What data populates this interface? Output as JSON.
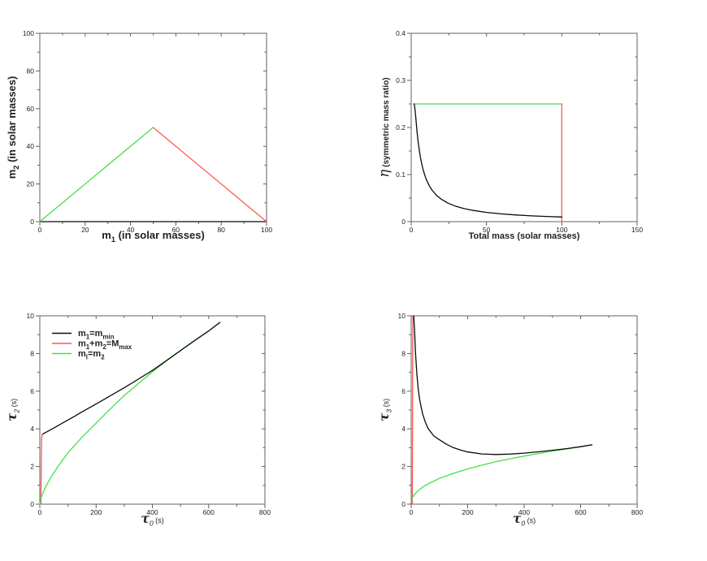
{
  "figure": {
    "background": "#ffffff"
  },
  "colors": {
    "black_series": "#0a0a0a",
    "red_series": "#fb5a50",
    "green_series": "#46e046",
    "frame": "#606060",
    "tick_text": "#333333",
    "label_text": "#111111"
  },
  "chart_data": [
    {
      "type": "line",
      "position": "top-left",
      "xlabel": "m_1 (in solar masses)",
      "ylabel": "m_2 (in solar masses)",
      "xlabel_rich": [
        {
          "t": "m",
          "b": 1
        },
        {
          "t": "1",
          "sub": 1,
          "b": 1
        },
        {
          "t": " (in solar masses)",
          "b": 1
        }
      ],
      "ylabel_rich": [
        {
          "t": "m",
          "b": 1
        },
        {
          "t": "2",
          "sub": 1,
          "b": 1
        },
        {
          "t": " (in solar masses)",
          "b": 1
        }
      ],
      "label_base_size": 13,
      "xlim": [
        0,
        100
      ],
      "ylim": [
        0,
        100
      ],
      "xticks": [
        0,
        20,
        40,
        60,
        80,
        100
      ],
      "xtick_labels": [
        "0",
        "20",
        "40",
        "60",
        "80",
        "100"
      ],
      "yticks": [
        0,
        20,
        40,
        60,
        80,
        100
      ],
      "ytick_labels": [
        "0",
        "20",
        "40",
        "60",
        "80",
        "100"
      ],
      "xminor": [
        10,
        30,
        50,
        70,
        90
      ],
      "yminor": [
        10,
        30,
        50,
        70,
        90
      ],
      "grid": false,
      "series": [
        {
          "name": "m2-equals-mmin-boundary",
          "color": "black",
          "points": [
            [
              0,
              0
            ],
            [
              100,
              0
            ]
          ]
        },
        {
          "name": "m1-equals-m2-boundary",
          "color": "green",
          "points": [
            [
              0,
              0
            ],
            [
              50,
              50
            ]
          ]
        },
        {
          "name": "total-mass-equals-mmax-boundary",
          "color": "red",
          "points": [
            [
              50,
              50
            ],
            [
              100,
              0
            ]
          ]
        }
      ]
    },
    {
      "type": "line",
      "position": "top-right",
      "xlabel": "Total mass (solar masses)",
      "ylabel": "η (symmetric mass ratio)",
      "xlabel_rich": [
        {
          "t": "Total mass (solar masses)",
          "b": 1
        }
      ],
      "ylabel_rich": [
        {
          "t": "η",
          "greek": 1,
          "fs": 1.5
        },
        {
          "t": " (symmetric mass ratio)",
          "b": 1,
          "fs": 0.92
        }
      ],
      "label_base_size": 11,
      "xlim": [
        0,
        150
      ],
      "ylim": [
        0,
        0.4
      ],
      "xticks": [
        0,
        50,
        100,
        150
      ],
      "xtick_labels": [
        "0",
        "50",
        "100",
        "150"
      ],
      "yticks": [
        0,
        0.1,
        0.2,
        0.3,
        0.4
      ],
      "ytick_labels": [
        "0",
        "0.1",
        "0.2",
        "0.3",
        "0.4"
      ],
      "xminor": [
        25,
        75,
        125
      ],
      "yminor": [
        0.05,
        0.15,
        0.25,
        0.35
      ],
      "grid": false,
      "series": [
        {
          "name": "eta-equal-mass",
          "color": "green",
          "points": [
            [
              1.5,
              0.25
            ],
            [
              100,
              0.25
            ]
          ]
        },
        {
          "name": "eta-max-total-mass",
          "color": "red",
          "points": [
            [
              100,
              0.25
            ],
            [
              100,
              0
            ]
          ]
        },
        {
          "name": "eta-min-mass",
          "color": "black",
          "points": [
            [
              2,
              0.25
            ],
            [
              2.5,
              0.24
            ],
            [
              3,
              0.2222
            ],
            [
              3.5,
              0.2041
            ],
            [
              4,
              0.1875
            ],
            [
              4.5,
              0.1728
            ],
            [
              5,
              0.16
            ],
            [
              6,
              0.1389
            ],
            [
              7,
              0.1224
            ],
            [
              8,
              0.1094
            ],
            [
              9,
              0.0988
            ],
            [
              10,
              0.09
            ],
            [
              12,
              0.0764
            ],
            [
              14,
              0.0663
            ],
            [
              17,
              0.0554
            ],
            [
              20,
              0.0475
            ],
            [
              25,
              0.0384
            ],
            [
              30,
              0.0322
            ],
            [
              35,
              0.0278
            ],
            [
              40,
              0.0244
            ],
            [
              50,
              0.0196
            ],
            [
              60,
              0.0164
            ],
            [
              70,
              0.0141
            ],
            [
              80,
              0.0123
            ],
            [
              90,
              0.011
            ],
            [
              100,
              0.0099
            ]
          ]
        }
      ]
    },
    {
      "type": "line",
      "position": "bottom-left",
      "xlabel": "τ_0 (s)",
      "ylabel": "τ_2 (s)",
      "xlabel_rich": [
        {
          "t": "τ",
          "greek": 1,
          "b": 1,
          "fs": 1.3
        },
        {
          "t": "0",
          "sub": 1,
          "it": 1
        },
        {
          "t": " (s)",
          "fs": 0.75
        }
      ],
      "ylabel_rich": [
        {
          "t": "τ",
          "greek": 1,
          "b": 1,
          "fs": 1.3
        },
        {
          "t": "2",
          "sub": 1,
          "it": 1
        },
        {
          "t": " (s)",
          "fs": 0.75
        }
      ],
      "label_base_size": 12,
      "xlim": [
        0,
        800
      ],
      "ylim": [
        0,
        10
      ],
      "xticks": [
        0,
        200,
        400,
        600,
        800
      ],
      "xtick_labels": [
        "0",
        "200",
        "400",
        "600",
        "800"
      ],
      "yticks": [
        0,
        2,
        4,
        6,
        8,
        10
      ],
      "ytick_labels": [
        "0",
        "2",
        "4",
        "6",
        "8",
        "10"
      ],
      "xminor": [
        100,
        300,
        500,
        700
      ],
      "yminor": [
        1,
        3,
        5,
        7,
        9
      ],
      "grid": false,
      "legend": {
        "position": "top-left-inside",
        "entries": [
          {
            "color": "black",
            "label": "m_1=m_min",
            "label_rich": [
              {
                "t": "m",
                "b": 1
              },
              {
                "t": "1",
                "sub": 1,
                "b": 1
              },
              {
                "t": "=m",
                "b": 1
              },
              {
                "t": "min",
                "sub": 1,
                "b": 1
              }
            ]
          },
          {
            "color": "red",
            "label": "m_1+m_2=M_max",
            "label_rich": [
              {
                "t": "m",
                "b": 1
              },
              {
                "t": "1",
                "sub": 1,
                "b": 1
              },
              {
                "t": "+m",
                "b": 1
              },
              {
                "t": "2",
                "sub": 1,
                "b": 1
              },
              {
                "t": "=M",
                "b": 1
              },
              {
                "t": "max",
                "sub": 1,
                "b": 1
              }
            ]
          },
          {
            "color": "green",
            "label": "m_l=m_2",
            "label_rich": [
              {
                "t": "m",
                "b": 1
              },
              {
                "t": "l",
                "sub": 1,
                "b": 1
              },
              {
                "t": "=m",
                "b": 1
              },
              {
                "t": "2",
                "sub": 1,
                "b": 1
              }
            ]
          }
        ]
      },
      "series": [
        {
          "name": "tau2-m1-plus-m2-equals-Mmax",
          "color": "red",
          "points": [
            [
              4,
              0
            ],
            [
              4.6,
              1.2
            ],
            [
              5.2,
              2.3
            ],
            [
              6,
              3.2
            ],
            [
              7,
              3.55
            ],
            [
              8.5,
              3.68
            ],
            [
              10,
              3.72
            ]
          ]
        },
        {
          "name": "tau2-m1-equals-m2",
          "color": "green",
          "points": [
            [
              0,
              0
            ],
            [
              5,
              0.35
            ],
            [
              10,
              0.55
            ],
            [
              20,
              0.9
            ],
            [
              40,
              1.45
            ],
            [
              60,
              1.9
            ],
            [
              80,
              2.32
            ],
            [
              100,
              2.73
            ],
            [
              150,
              3.55
            ],
            [
              200,
              4.3
            ],
            [
              250,
              5.05
            ],
            [
              300,
              5.77
            ],
            [
              350,
              6.4
            ],
            [
              400,
              7.02
            ],
            [
              450,
              7.62
            ],
            [
              500,
              8.16
            ],
            [
              550,
              8.7
            ],
            [
              600,
              9.2
            ],
            [
              640,
              9.65
            ]
          ]
        },
        {
          "name": "tau2-m1-equals-mmin",
          "color": "black",
          "points": [
            [
              10,
              3.72
            ],
            [
              20,
              3.8
            ],
            [
              40,
              3.96
            ],
            [
              60,
              4.13
            ],
            [
              80,
              4.3
            ],
            [
              100,
              4.47
            ],
            [
              125,
              4.68
            ],
            [
              150,
              4.9
            ],
            [
              175,
              5.11
            ],
            [
              200,
              5.32
            ],
            [
              250,
              5.75
            ],
            [
              300,
              6.18
            ],
            [
              350,
              6.64
            ],
            [
              400,
              7.1
            ],
            [
              450,
              7.62
            ],
            [
              500,
              8.15
            ],
            [
              550,
              8.68
            ],
            [
              600,
              9.2
            ],
            [
              640,
              9.65
            ]
          ]
        }
      ]
    },
    {
      "type": "line",
      "position": "bottom-right",
      "xlabel": "τ_0 (s)",
      "ylabel": "τ_3 (s)",
      "xlabel_rich": [
        {
          "t": "τ",
          "greek": 1,
          "b": 1,
          "fs": 1.3
        },
        {
          "t": "0",
          "sub": 1,
          "it": 1
        },
        {
          "t": " (s)",
          "fs": 0.75
        }
      ],
      "ylabel_rich": [
        {
          "t": "τ",
          "greek": 1,
          "b": 1,
          "fs": 1.3
        },
        {
          "t": "3",
          "sub": 1,
          "it": 1
        },
        {
          "t": " (s)",
          "fs": 0.75
        }
      ],
      "label_base_size": 12,
      "xlim": [
        0,
        800
      ],
      "ylim": [
        0,
        10
      ],
      "xticks": [
        0,
        200,
        400,
        600,
        800
      ],
      "xtick_labels": [
        "0",
        "200",
        "400",
        "600",
        "800"
      ],
      "yticks": [
        0,
        2,
        4,
        6,
        8,
        10
      ],
      "ytick_labels": [
        "0",
        "2",
        "4",
        "6",
        "8",
        "10"
      ],
      "xminor": [
        100,
        300,
        500,
        700
      ],
      "yminor": [
        1,
        3,
        5,
        7,
        9
      ],
      "grid": false,
      "series": [
        {
          "name": "tau3-m1-plus-m2-equals-Mmax",
          "color": "red",
          "points": [
            [
              4,
              0
            ],
            [
              4.7,
              3.5
            ],
            [
              5.3,
              7
            ],
            [
              6,
              10
            ]
          ]
        },
        {
          "name": "tau3-m1-equals-m2",
          "color": "green",
          "points": [
            [
              1,
              0.2
            ],
            [
              2,
              0.24
            ],
            [
              5,
              0.36
            ],
            [
              10,
              0.48
            ],
            [
              20,
              0.66
            ],
            [
              40,
              0.9
            ],
            [
              60,
              1.08
            ],
            [
              80,
              1.22
            ],
            [
              100,
              1.37
            ],
            [
              150,
              1.64
            ],
            [
              200,
              1.87
            ],
            [
              250,
              2.07
            ],
            [
              300,
              2.26
            ],
            [
              350,
              2.41
            ],
            [
              400,
              2.55
            ],
            [
              450,
              2.69
            ],
            [
              500,
              2.82
            ],
            [
              550,
              2.93
            ],
            [
              600,
              3.05
            ],
            [
              640,
              3.15
            ]
          ]
        },
        {
          "name": "tau3-m1-equals-mmin",
          "color": "black",
          "points": [
            [
              9,
              10
            ],
            [
              10,
              9.7
            ],
            [
              12,
              9.2
            ],
            [
              15,
              8.1
            ],
            [
              20,
              6.9
            ],
            [
              25,
              6.1
            ],
            [
              30,
              5.55
            ],
            [
              40,
              4.82
            ],
            [
              50,
              4.35
            ],
            [
              60,
              4.02
            ],
            [
              80,
              3.62
            ],
            [
              100,
              3.42
            ],
            [
              125,
              3.18
            ],
            [
              150,
              3.0
            ],
            [
              175,
              2.87
            ],
            [
              200,
              2.77
            ],
            [
              250,
              2.67
            ],
            [
              300,
              2.64
            ],
            [
              350,
              2.66
            ],
            [
              400,
              2.71
            ],
            [
              450,
              2.78
            ],
            [
              500,
              2.86
            ],
            [
              550,
              2.95
            ],
            [
              600,
              3.05
            ],
            [
              640,
              3.15
            ]
          ]
        }
      ]
    }
  ]
}
